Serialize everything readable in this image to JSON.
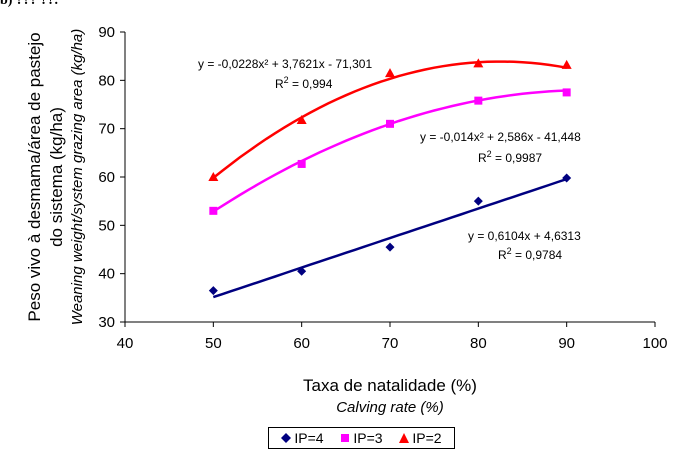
{
  "top_fragment": "b) ??? ??.",
  "chart_data": {
    "type": "scatter",
    "x": [
      50,
      60,
      70,
      80,
      90
    ],
    "xlim": [
      40,
      100
    ],
    "ylim": [
      30,
      90
    ],
    "xticks": [
      "40",
      "50",
      "60",
      "70",
      "80",
      "90",
      "100"
    ],
    "yticks": [
      "30",
      "40",
      "50",
      "60",
      "70",
      "80",
      "90"
    ],
    "xlabel": "Taxa de natalidade (%)",
    "xlabel_sub": "Calving rate (%)",
    "ylabel_line1": "Peso vivo à desmama/área de pastejo",
    "ylabel_line2": "do sistema (kg/ha)",
    "ylabel_sub": "Weaning weight/system grazing area (kg/ha)",
    "series": [
      {
        "name": "IP=4",
        "color": "#000080",
        "marker": "diamond",
        "values": [
          36.5,
          40.5,
          45.5,
          55,
          59.8
        ],
        "trend": {
          "type": "linear",
          "coeffs": [
            0.6104,
            4.6313
          ]
        },
        "equation": "y = 0,6104x + 4,6313",
        "r2_prefix": "R",
        "r2_value": " = 0,9784"
      },
      {
        "name": "IP=3",
        "color": "#ff00ff",
        "marker": "square",
        "values": [
          53,
          62.7,
          71,
          75.8,
          77.5
        ],
        "trend": {
          "type": "poly2",
          "coeffs": [
            -0.014,
            2.586,
            -41.448
          ]
        },
        "equation": "y = -0,014x² + 2,586x - 41,448",
        "r2_prefix": "R",
        "r2_value": " = 0,9987"
      },
      {
        "name": "IP=2",
        "color": "#ff0000",
        "marker": "triangle",
        "values": [
          60,
          71.8,
          81.5,
          83.5,
          83.2
        ],
        "trend": {
          "type": "poly2",
          "coeffs": [
            -0.0228,
            3.7621,
            -71.301
          ]
        },
        "equation": "y = -0,0228x² + 3,7621x - 71,301",
        "r2_prefix": "R",
        "r2_value": " = 0,994"
      }
    ],
    "legend": {
      "position": "bottom",
      "items": [
        "IP=4",
        "IP=3",
        "IP=2"
      ]
    }
  }
}
